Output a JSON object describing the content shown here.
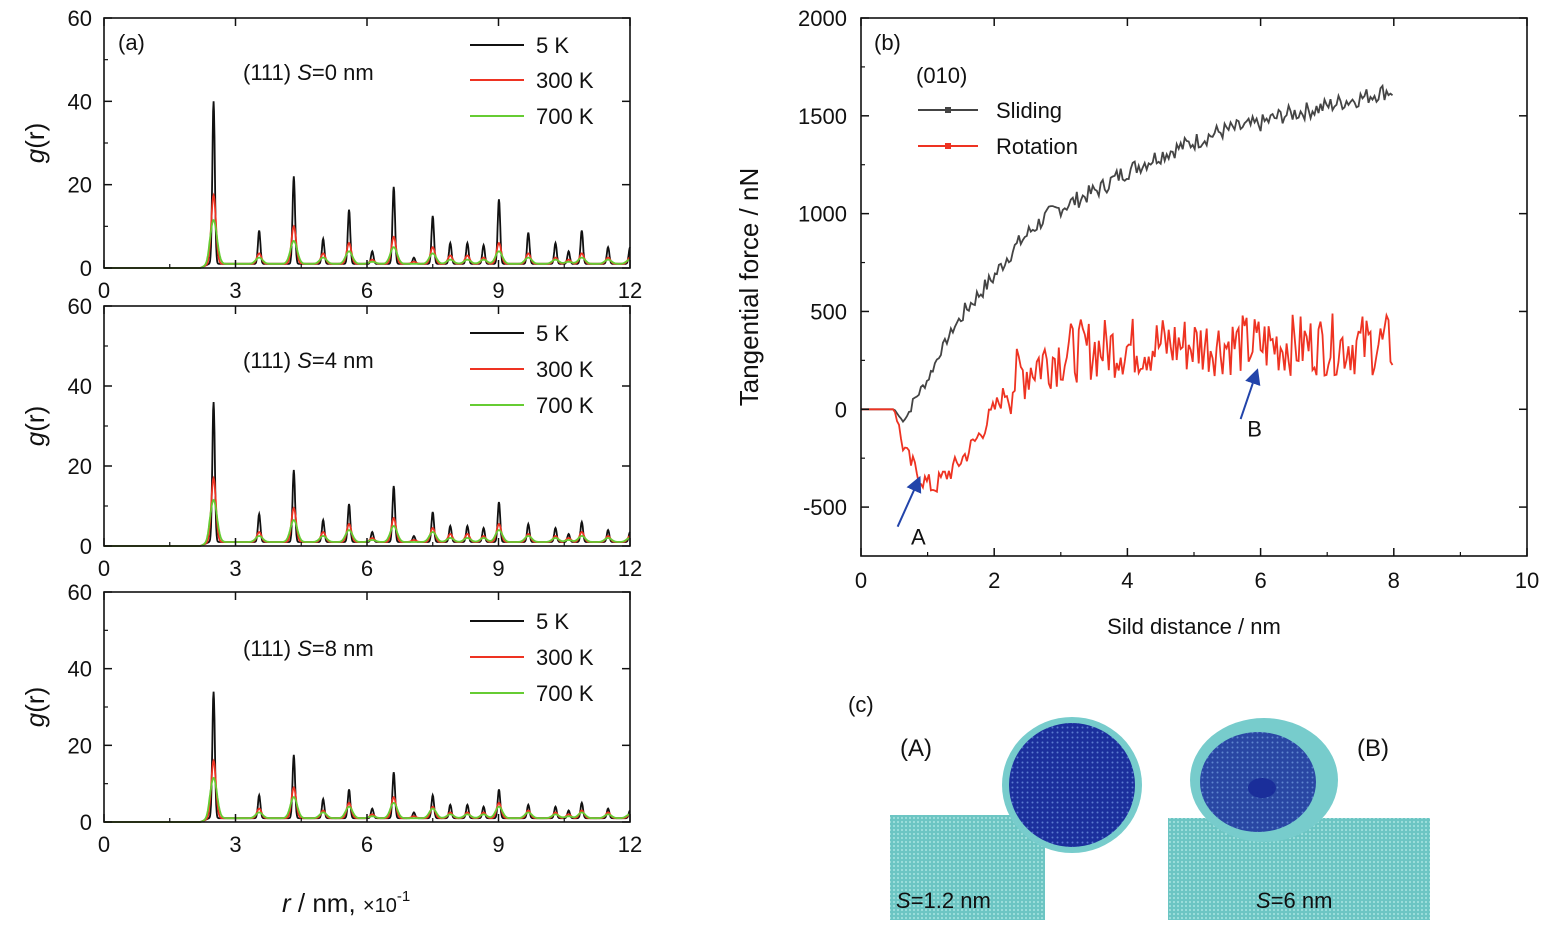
{
  "colors": {
    "black": "#111111",
    "red": "#ee3322",
    "green": "#66cc33",
    "gray": "#444444",
    "blue": "#2244aa",
    "cyan": "#77cccc",
    "navy": "#1a2e9a"
  },
  "chart_data": [
    {
      "type": "line",
      "panel": "(a)",
      "annotation_pre": "(111)",
      "annotation_s": "S",
      "annotation_post": "=0 nm",
      "ylabel_g": "g",
      "ylabel_r": "(r)",
      "xlim": [
        0,
        12
      ],
      "ylim": [
        0,
        60
      ],
      "xticks": [
        0,
        3,
        6,
        9,
        12
      ],
      "yticks": [
        0,
        20,
        40,
        60
      ],
      "peaks_r": [
        2.5,
        3.54,
        4.33,
        5.0,
        5.59,
        6.12,
        6.61,
        7.07,
        7.5,
        7.9,
        8.29,
        8.66,
        9.01,
        9.68,
        10.3,
        10.6,
        10.9,
        11.5,
        12.0
      ],
      "series": [
        {
          "name": "5 K",
          "color": "black",
          "peaks": [
            40,
            9,
            22,
            7,
            14,
            4,
            19.5,
            2.5,
            12.5,
            6,
            6,
            5.5,
            16.5,
            8.5,
            6,
            4,
            9,
            5,
            5
          ]
        },
        {
          "name": "300 K",
          "color": "red",
          "peaks": [
            17.5,
            3.5,
            10,
            3.5,
            6,
            2,
            7.5,
            1.5,
            5,
            3,
            3,
            2.5,
            6,
            3.5,
            2.5,
            2,
            3.5,
            2.5,
            2.5
          ]
        },
        {
          "name": "700 K",
          "color": "green",
          "peaks": [
            11.5,
            2.5,
            6.5,
            2.5,
            4,
            1.5,
            5,
            1,
            3.5,
            2,
            2,
            2,
            4,
            2.5,
            2,
            1.5,
            2.5,
            2,
            2
          ]
        }
      ]
    },
    {
      "type": "line",
      "annotation_pre": "(111)",
      "annotation_s": "S",
      "annotation_post": "=4 nm",
      "ylabel_g": "g",
      "ylabel_r": "(r)",
      "xlim": [
        0,
        12
      ],
      "ylim": [
        0,
        60
      ],
      "xticks": [
        0,
        3,
        6,
        9,
        12
      ],
      "yticks": [
        0,
        20,
        40,
        60
      ],
      "series": [
        {
          "name": "5 K",
          "color": "black",
          "peaks": [
            36,
            8,
            19,
            6.5,
            10.5,
            3.5,
            15,
            2.5,
            8.5,
            5,
            5,
            4.5,
            11,
            5.5,
            4.5,
            3,
            6,
            4,
            3.5
          ]
        },
        {
          "name": "300 K",
          "color": "red",
          "peaks": [
            17,
            3.5,
            9.5,
            3.5,
            5.5,
            2,
            7,
            1.5,
            4.5,
            3,
            3,
            2.5,
            5.5,
            3,
            2.5,
            2,
            3.5,
            2.5,
            2.5
          ]
        },
        {
          "name": "700 K",
          "color": "green",
          "peaks": [
            11.5,
            2.5,
            6.5,
            2.5,
            4,
            1.5,
            5,
            1,
            3.5,
            2,
            2,
            2,
            4,
            2.5,
            2,
            1.5,
            2.5,
            2,
            2
          ]
        }
      ]
    },
    {
      "type": "line",
      "annotation_pre": "(111)",
      "annotation_s": "S",
      "annotation_post": "=8 nm",
      "ylabel_g": "g",
      "ylabel_r": "(r)",
      "xlabel_r": "r",
      "xlabel_mid": " / nm, ",
      "xlabel_times": "×10",
      "xlabel_exp": "-1",
      "xlim": [
        0,
        12
      ],
      "ylim": [
        0,
        60
      ],
      "xticks": [
        0,
        3,
        6,
        9,
        12
      ],
      "yticks": [
        0,
        20,
        40,
        60
      ],
      "series": [
        {
          "name": "5 K",
          "color": "black",
          "peaks": [
            34,
            7,
            17.5,
            6,
            8.5,
            3.5,
            13,
            2.5,
            7,
            4.5,
            4.5,
            4,
            8.5,
            4.5,
            4,
            3,
            5,
            3.5,
            3
          ]
        },
        {
          "name": "300 K",
          "color": "red",
          "peaks": [
            16,
            3.5,
            9,
            3,
            5,
            2,
            6.5,
            1.5,
            4,
            2.5,
            2.5,
            2.5,
            5,
            3,
            2.5,
            2,
            3,
            2.5,
            2
          ]
        },
        {
          "name": "700 K",
          "color": "green",
          "peaks": [
            11.5,
            2.5,
            6.5,
            2.5,
            4,
            1.5,
            5,
            1,
            3.5,
            2,
            2,
            2,
            4,
            2.5,
            2,
            1.5,
            2.5,
            2,
            2
          ]
        }
      ]
    },
    {
      "type": "line",
      "panel": "(b)",
      "plane": "(010)",
      "xlabel": "Sild distance / nm",
      "ylabel": "Tangential force  / nN",
      "xlim": [
        0,
        10
      ],
      "ylim": [
        -750,
        2000
      ],
      "xticks": [
        0,
        2,
        4,
        6,
        8,
        10
      ],
      "yticks": [
        -500,
        0,
        500,
        1000,
        1500,
        2000
      ],
      "arrow_a": "A",
      "arrow_b": "B",
      "series": [
        {
          "name": "Sliding",
          "color": "gray",
          "x": [
            0,
            0.5,
            0.6,
            0.7,
            0.8,
            1.0,
            1.2,
            1.4,
            1.6,
            1.8,
            2.0,
            2.2,
            2.4,
            2.6,
            2.8,
            3.0,
            3.3,
            3.6,
            3.9,
            4.2,
            4.5,
            4.8,
            5.1,
            5.4,
            5.7,
            6.0,
            6.3,
            6.6,
            6.9,
            7.2,
            7.5,
            7.8,
            8.0
          ],
          "y": [
            0,
            0,
            -50,
            -30,
            50,
            150,
            300,
            420,
            520,
            600,
            680,
            780,
            860,
            930,
            990,
            1030,
            1080,
            1130,
            1200,
            1250,
            1300,
            1340,
            1380,
            1420,
            1440,
            1460,
            1500,
            1520,
            1540,
            1570,
            1590,
            1620,
            1630
          ]
        },
        {
          "name": "Rotation",
          "color": "red",
          "x": [
            0,
            0.5,
            0.6,
            0.7,
            0.8,
            0.9,
            1.0,
            1.1,
            1.2,
            1.4,
            1.6,
            1.8,
            2.0,
            2.2,
            2.4,
            2.6,
            2.8,
            3.0,
            3.3,
            3.6,
            3.9,
            4.2,
            4.5,
            4.8,
            5.1,
            5.4,
            5.7,
            6.0,
            6.3,
            6.6,
            6.9,
            7.2,
            7.5,
            7.8,
            8.0
          ],
          "y": [
            0,
            0,
            -150,
            -250,
            -300,
            -350,
            -380,
            -400,
            -360,
            -300,
            -220,
            -120,
            0,
            100,
            180,
            230,
            260,
            280,
            300,
            310,
            320,
            320,
            330,
            330,
            330,
            330,
            330,
            330,
            330,
            330,
            330,
            330,
            330,
            330,
            330
          ]
        }
      ]
    }
  ],
  "panel_c": {
    "label": "(c)",
    "tag_a": "(A)",
    "tag_b": "(B)",
    "s_sym": "S",
    "s_a": "=1.2 nm",
    "s_b": "=6 nm"
  }
}
